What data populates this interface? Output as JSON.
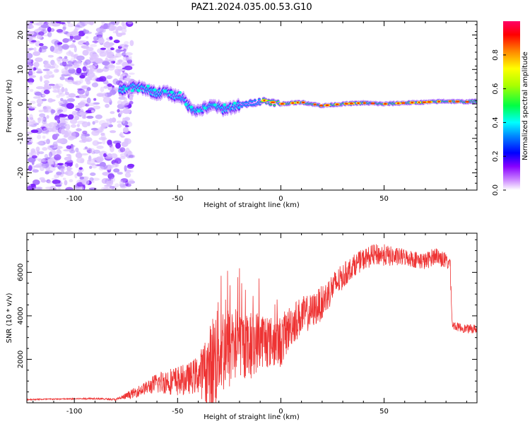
{
  "figure_title": "PAZ1.2024.035.00.53.G10",
  "chart_data": [
    {
      "type": "heatmap",
      "title": "",
      "xlabel": "Height of straight line (km)",
      "ylabel": "Frequency (Hz)",
      "xlim": [
        -123,
        95
      ],
      "ylim": [
        -25,
        24
      ],
      "xticks": [
        -100,
        -50,
        0,
        50
      ],
      "xtick_labels": [
        "-100",
        "-50",
        "0",
        "50"
      ],
      "yticks": [
        -20,
        -10,
        0,
        10,
        20
      ],
      "ytick_labels": [
        "-20",
        "-10",
        "0",
        "10",
        "20"
      ],
      "colorbar": {
        "label": "Normalized spectral amplitude",
        "range": [
          0,
          1
        ],
        "ticks": [
          0,
          0.2,
          0.4,
          0.6,
          0.8
        ],
        "tick_labels": [
          "0.0",
          "0.2",
          "0.4",
          "0.6",
          "0.8"
        ],
        "colormap": [
          "#ffffff",
          "#9933ff",
          "#2200ee",
          "#0044ff",
          "#00ffff",
          "#00ff00",
          "#ffff00",
          "#ff9900",
          "#ff0000",
          "#ff0066"
        ]
      },
      "ridge_frequency": {
        "x": [
          -78,
          -72,
          -66,
          -60,
          -56,
          -52,
          -48,
          -44,
          -40,
          -36,
          -32,
          -28,
          -24,
          -20,
          -16,
          -12,
          -8,
          -4,
          0,
          10,
          20,
          30,
          40,
          50,
          60,
          70,
          80,
          90,
          95
        ],
        "y": [
          4,
          5,
          4.5,
          3,
          3.5,
          2.5,
          2,
          -1,
          -2,
          -1,
          -0.5,
          -1.5,
          -1,
          -0.5,
          0,
          0.5,
          1,
          0.5,
          0,
          0.5,
          -0.5,
          0,
          0.3,
          0,
          0.3,
          0.5,
          0.8,
          0.6,
          0.8
        ]
      },
      "noise_region_x": [
        -123,
        -78
      ]
    },
    {
      "type": "line",
      "title": "",
      "xlabel": "Height of straight line (km)",
      "ylabel": "SNR (10 * v/v)",
      "xlim": [
        -123,
        95
      ],
      "ylim": [
        0,
        7800
      ],
      "xticks": [
        -100,
        -50,
        0,
        50
      ],
      "xtick_labels": [
        "-100",
        "-50",
        "0",
        "50"
      ],
      "yticks": [
        2000,
        4000,
        6000
      ],
      "ytick_labels": [
        "2000",
        "4000",
        "6000"
      ],
      "color": "#ee3333",
      "series": [
        {
          "x": [
            -123,
            -110,
            -100,
            -90,
            -80,
            -75,
            -70,
            -65,
            -60,
            -55,
            -50,
            -45,
            -40,
            -35,
            -32,
            -30,
            -25,
            -20,
            -15,
            -10,
            -5,
            0,
            5,
            10,
            15,
            20,
            25,
            30,
            35,
            40,
            45,
            50,
            55,
            60,
            65,
            70,
            75,
            80,
            82,
            83,
            85,
            90,
            95
          ],
          "y": [
            150,
            170,
            180,
            200,
            150,
            300,
            500,
            700,
            900,
            1000,
            1000,
            1100,
            1300,
            1500,
            2000,
            2500,
            2500,
            2800,
            2500,
            3000,
            2800,
            2800,
            3600,
            4000,
            4200,
            4600,
            5300,
            5800,
            6300,
            6600,
            6800,
            6800,
            6700,
            6700,
            6600,
            6500,
            6800,
            6500,
            6400,
            3600,
            3500,
            3400,
            3400
          ],
          "fluctuation": [
            30,
            30,
            30,
            40,
            40,
            150,
            250,
            300,
            500,
            600,
            700,
            700,
            900,
            1800,
            2600,
            2200,
            2000,
            1600,
            1500,
            1400,
            1200,
            1200,
            1000,
            900,
            800,
            800,
            700,
            600,
            500,
            500,
            500,
            500,
            450,
            400,
            400,
            400,
            400,
            400,
            400,
            200,
            200,
            200,
            200
          ]
        }
      ]
    }
  ]
}
